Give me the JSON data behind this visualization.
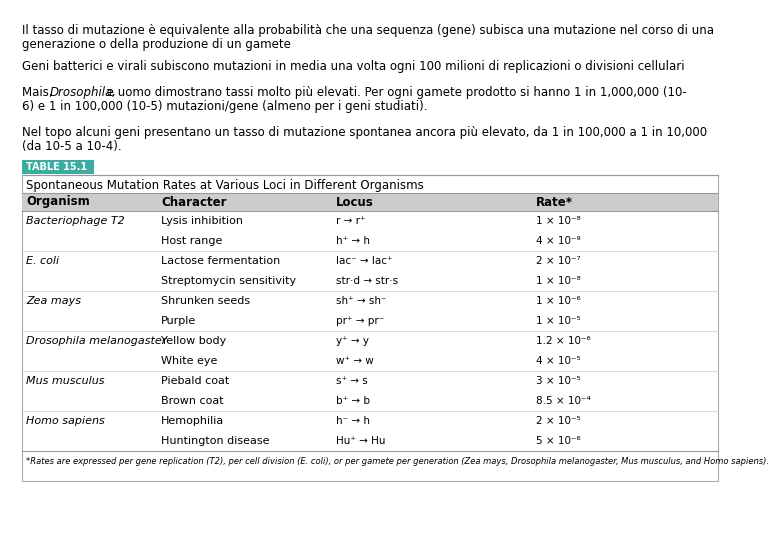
{
  "bg_color": "#ffffff",
  "text_color": "#000000",
  "para1_line1": "Il tasso di mutazione è equivalente alla probabilità che una sequenza (gene) subisca una mutazione nel corso di una",
  "para1_line2": "generazione o della produzione di un gamete",
  "para2": "Geni batterici e virali subiscono mutazioni in media una volta ogni 100 milioni di replicazioni o divisioni cellulari",
  "para3_pre": "Mais, ",
  "para3_italic": "Drosophila,",
  "para3_post": " e uomo dimostrano tassi molto più elevati. Per ogni gamete prodotto si hanno 1 in 1,000,000 (10-",
  "para3_line2": "6) e 1 in 100,000 (10-5) mutazioni/gene (almeno per i geni studiati).",
  "para4_line1": "Nel topo alcuni geni presentano un tasso di mutazione spontanea ancora più elevato, da 1 in 100,000 a 1 in 10,000",
  "para4_line2": "(da 10-5 a 10-4).",
  "table_label": "TABLE 15.1",
  "table_label_bg": "#3aada0",
  "table_title": "Spontaneous Mutation Rates at Various Loci in Different Organisms",
  "col_headers": [
    "Organism",
    "Character",
    "Locus",
    "Rate*"
  ],
  "col_header_bg": "#cccccc",
  "rows": [
    [
      "Bacteriophage T2",
      "Lysis inhibition",
      "r → r⁺",
      "1 × 10⁻⁸"
    ],
    [
      "",
      "Host range",
      "h⁺ → h",
      "4 × 10⁻⁹"
    ],
    [
      "E. coli",
      "Lactose fermentation",
      "lac⁻ → lac⁺",
      "2 × 10⁻⁷"
    ],
    [
      "",
      "Streptomycin sensitivity",
      "str·d → str·s",
      "1 × 10⁻⁸"
    ],
    [
      "Zea mays",
      "Shrunken seeds",
      "sh⁺ → sh⁻",
      "1 × 10⁻⁶"
    ],
    [
      "",
      "Purple",
      "pr⁺ → pr⁻",
      "1 × 10⁻⁵"
    ],
    [
      "Drosophila melanogaster",
      "Yellow body",
      "y⁺ → y",
      "1.2 × 10⁻⁶"
    ],
    [
      "",
      "White eye",
      "w⁺ → w",
      "4 × 10⁻⁵"
    ],
    [
      "Mus musculus",
      "Piebald coat",
      "s⁺ → s",
      "3 × 10⁻⁵"
    ],
    [
      "",
      "Brown coat",
      "b⁺ → b",
      "8.5 × 10⁻⁴"
    ],
    [
      "Homo sapiens",
      "Hemophilia",
      "h⁻ → h",
      "2 × 10⁻⁵"
    ],
    [
      "",
      "Huntington disease",
      "Hu⁺ → Hu",
      "5 × 10⁻⁶"
    ]
  ],
  "italic_organisms": [
    "Bacteriophage T2",
    "E. coli",
    "Zea mays",
    "Drosophila melanogaster",
    "Mus musculus",
    "Homo sapiens"
  ],
  "footnote": "*Rates are expressed per gene replication (T2), per cell division (E. coli), or per gamete per generation (Zea mays, Drosophila melanogaster, Mus musculus, and Homo sapiens).",
  "group_starts": [
    0,
    2,
    4,
    6,
    8,
    10
  ]
}
